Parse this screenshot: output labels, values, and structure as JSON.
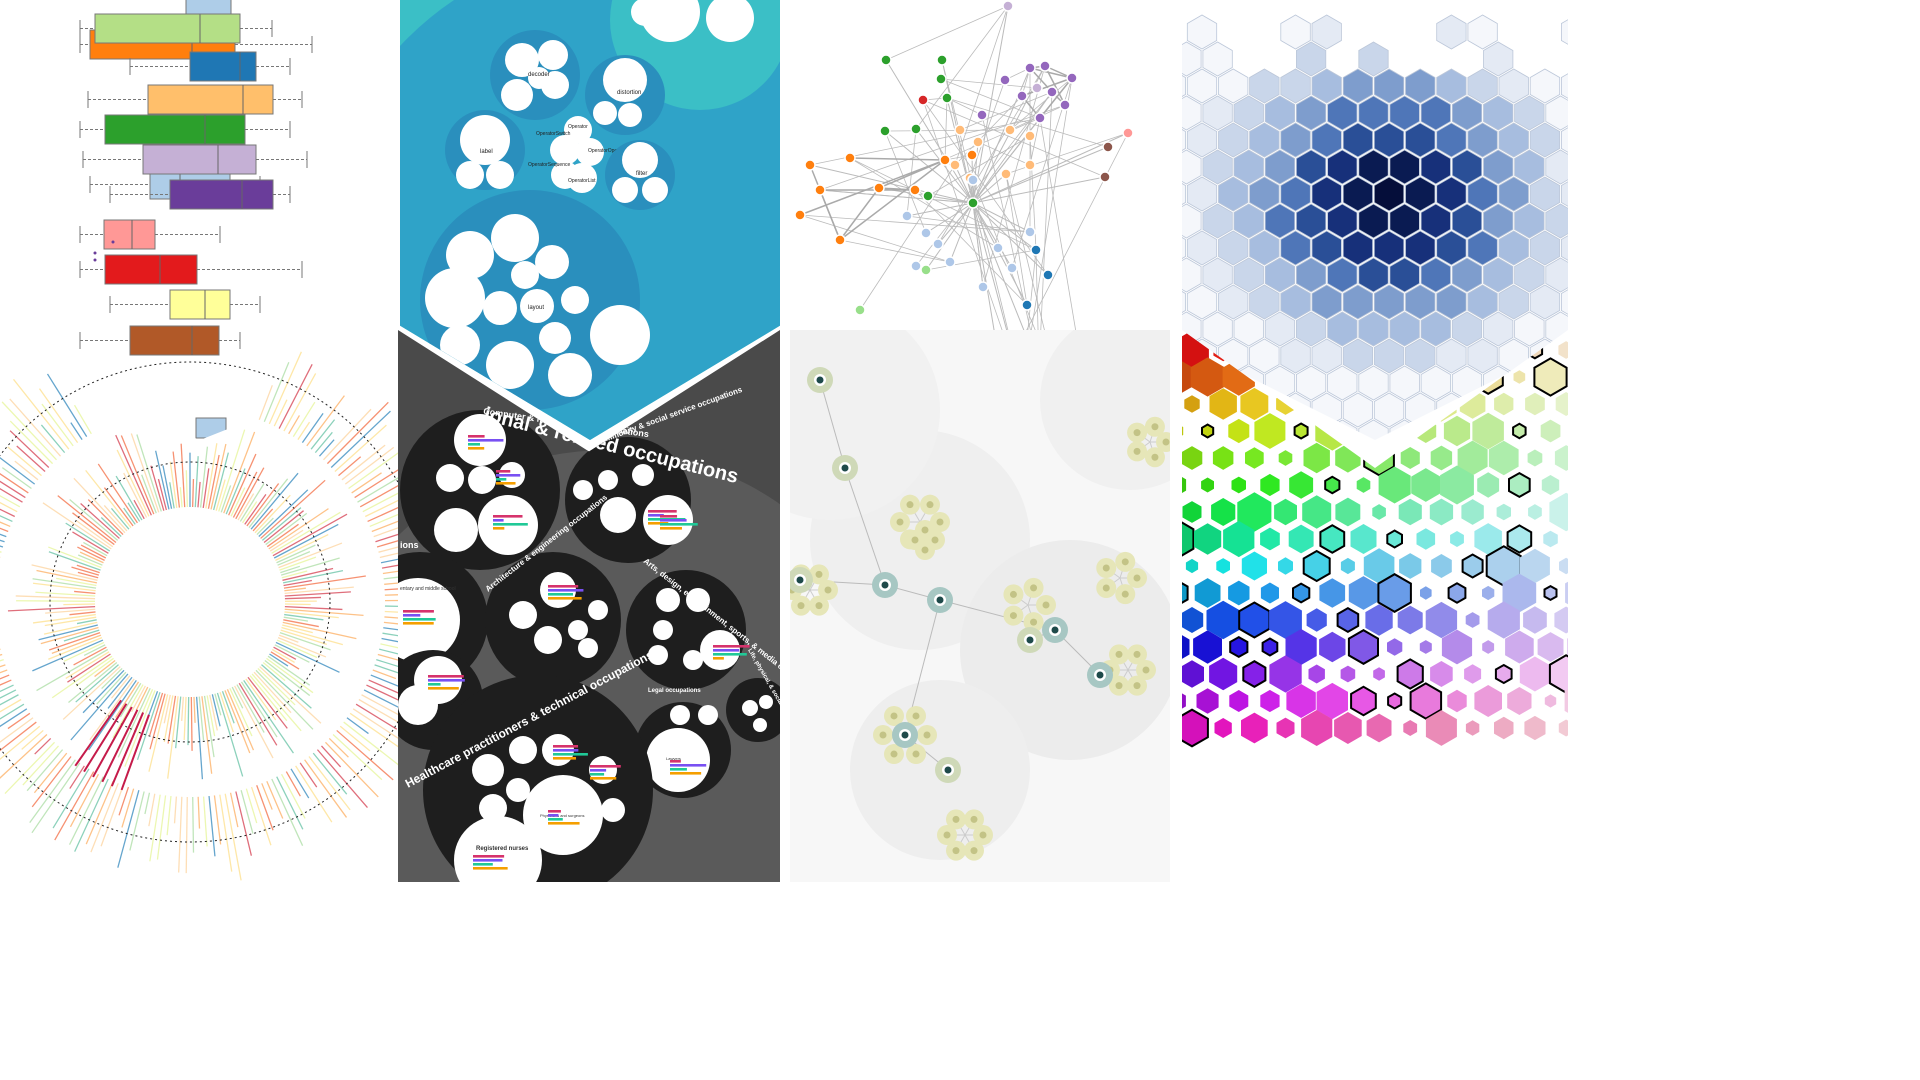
{
  "pack_labels": {
    "decoder": "decoder",
    "distortion": "distortion",
    "label": "label",
    "operator": "Operator",
    "operator_switch": "OperatorSwitch",
    "operator_operator": "OperatorOperator",
    "operator_sequence": "OperatorSequence",
    "operator_list": "OperatorList",
    "filter": "filter",
    "layout": "layout"
  },
  "occupations": {
    "top_title": "ional & related occupations",
    "computer_math": "Computer & mathematical occupations",
    "community_social": "Community & social service occupations",
    "architecture_eng": "Architecture & engineering occupations",
    "arts_design": "Arts, design, entertainment, sports, & media occupations",
    "healthcare": "Healthcare practitioners & technical occupations",
    "legal": "Legal occupations",
    "life_physical": "Life, physical, & social",
    "ions": "ions",
    "registered_nurses": "Registered nurses",
    "elementary": "entary and middle school",
    "physicians": "Physicians and surgeons",
    "lawyers": "Lawyers"
  },
  "colors": {
    "boxplot": [
      "#aecde8",
      "#ff7f0e",
      "#b4df86",
      "#1f77b4",
      "#ffbf6b",
      "#2ca02c",
      "#c5b0d5",
      "#6a3d9a",
      "#ff9896",
      "#e31a1c",
      "#ffff99",
      "#b15928"
    ],
    "network_groups": [
      "#2ca02c",
      "#d62728",
      "#9467bd",
      "#ff7f0e",
      "#ffbb78",
      "#aec7e8",
      "#1f77b4",
      "#98df8a",
      "#ff9896",
      "#8c564b",
      "#c5b0d5"
    ],
    "pack_bg": "#3bbfc6",
    "occ_bg": "#4a4a4a"
  }
}
